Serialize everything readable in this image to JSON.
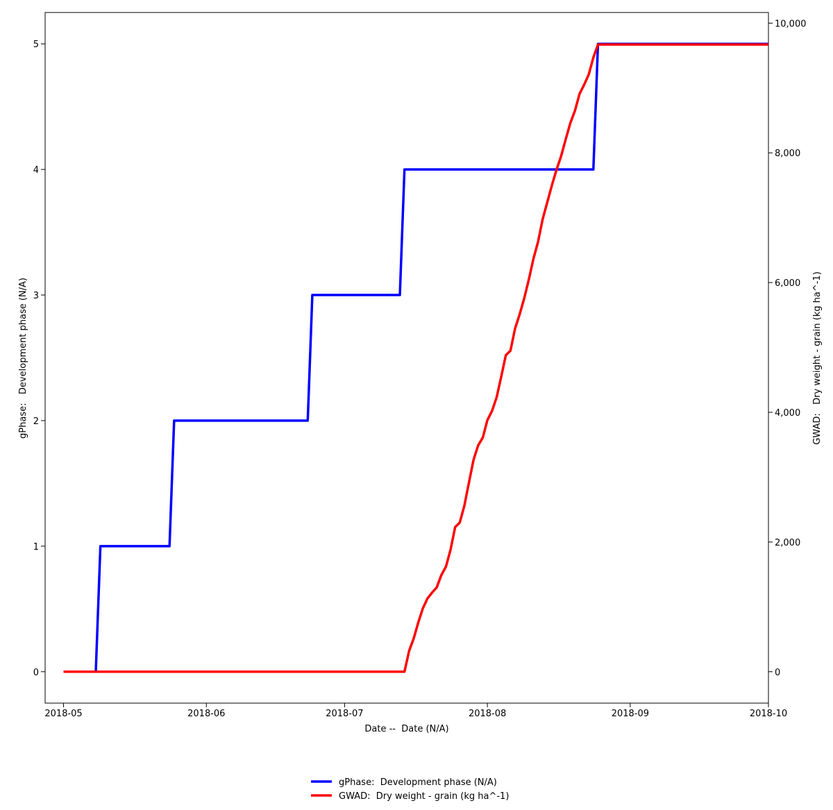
{
  "chart_data": {
    "type": "line",
    "xlabel": "Date --  Date (N/A)",
    "ylabel": "gPhase:   Development phase (N/A)",
    "y2label": "GWAD:   Dry weight - grain (kg ha^-1)",
    "xlim": [
      "2018-04-27",
      "2018-10-01"
    ],
    "xticks": [
      {
        "value": "2018-05-01",
        "label": "2018-05"
      },
      {
        "value": "2018-06-01",
        "label": "2018-06"
      },
      {
        "value": "2018-07-01",
        "label": "2018-07"
      },
      {
        "value": "2018-08-01",
        "label": "2018-08"
      },
      {
        "value": "2018-09-01",
        "label": "2018-09"
      },
      {
        "value": "2018-10-01",
        "label": "2018-10"
      }
    ],
    "ylim": [
      -0.25,
      5.25
    ],
    "yticks": [
      0,
      1,
      2,
      3,
      4,
      5
    ],
    "y2lim": [
      -484,
      10164
    ],
    "y2ticks": [
      0,
      {
        "value": 2000,
        "label": "2,000"
      },
      {
        "value": 4000,
        "label": "4,000"
      },
      {
        "value": 6000,
        "label": "6,000"
      },
      {
        "value": 8000,
        "label": "8,000"
      },
      {
        "value": 10000,
        "label": "10,000"
      }
    ],
    "legend": "bottom",
    "series": [
      {
        "name": "gPhase:  Development phase (N/A)",
        "color": "#0000ff",
        "x": [
          "2018-05-01",
          "2018-05-08",
          "2018-05-09",
          "2018-05-24",
          "2018-05-25",
          "2018-06-23",
          "2018-06-24",
          "2018-07-13",
          "2018-07-14",
          "2018-08-24",
          "2018-08-25",
          "2018-10-01"
        ],
        "values": [
          0,
          0,
          1,
          1,
          2,
          2,
          3,
          3,
          4,
          4,
          5,
          5
        ]
      },
      {
        "name": "GWAD:  Dry weight - grain (kg ha^-1)",
        "color": "#ff0000",
        "axis": "y2",
        "x": [
          "2018-05-01",
          "2018-07-14",
          "2018-07-15",
          "2018-07-16",
          "2018-07-17",
          "2018-07-18",
          "2018-07-19",
          "2018-07-20",
          "2018-07-21",
          "2018-07-22",
          "2018-07-23",
          "2018-07-24",
          "2018-07-25",
          "2018-07-26",
          "2018-07-27",
          "2018-07-28",
          "2018-07-29",
          "2018-07-30",
          "2018-07-31",
          "2018-08-01",
          "2018-08-02",
          "2018-08-03",
          "2018-08-04",
          "2018-08-05",
          "2018-08-06",
          "2018-08-07",
          "2018-08-08",
          "2018-08-09",
          "2018-08-10",
          "2018-08-11",
          "2018-08-12",
          "2018-08-13",
          "2018-08-14",
          "2018-08-15",
          "2018-08-16",
          "2018-08-17",
          "2018-08-18",
          "2018-08-19",
          "2018-08-20",
          "2018-08-21",
          "2018-08-22",
          "2018-08-23",
          "2018-08-24",
          "2018-08-25",
          "2018-10-01"
        ],
        "values": [
          0,
          0,
          320,
          513,
          760,
          980,
          1130,
          1220,
          1300,
          1490,
          1620,
          1880,
          2230,
          2300,
          2560,
          2920,
          3270,
          3490,
          3610,
          3880,
          4020,
          4230,
          4550,
          4880,
          4950,
          5290,
          5510,
          5760,
          6050,
          6370,
          6630,
          6980,
          7240,
          7500,
          7740,
          7950,
          8210,
          8460,
          8650,
          8910,
          9050,
          9210,
          9470,
          9670,
          9670
        ]
      }
    ]
  }
}
